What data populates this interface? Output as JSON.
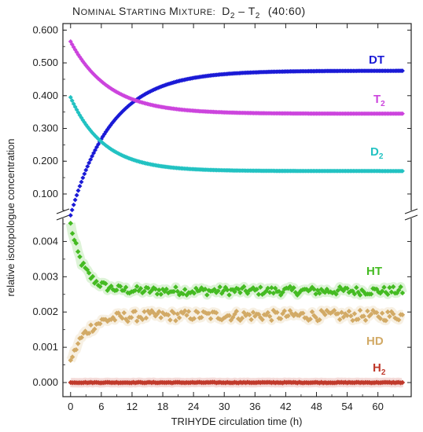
{
  "title": "NOMINAL STARTING MIXTURE: D2 – T2 (40:60)",
  "title_parts": {
    "lead": "N",
    "lead_small": "OMINAL ",
    "s": "S",
    "s_small": "TARTING ",
    "m": "M",
    "m_small": "IXTURE:",
    "formula_a": "D",
    "formula_sub_a": "2",
    "dash": " – ",
    "formula_b": "T",
    "formula_sub_b": "2",
    "ratio": "(40:60)"
  },
  "chart_data": [
    {
      "type": "scatter",
      "panel": "upper",
      "xlabel": "TRIHYDE circulation time  (h)",
      "ylabel": "relative isotopologue concentration",
      "xlim": [
        -1.5,
        66.5
      ],
      "ylim": [
        0.04,
        0.62
      ],
      "yticks": [
        "0.100",
        "0.200",
        "0.300",
        "0.400",
        "0.500",
        "0.600"
      ],
      "series": [
        {
          "name": "DT",
          "label_base": "DT",
          "label_sub": "",
          "color": "#1a1ad6",
          "start": 0.035,
          "end": 0.476,
          "tau": 8.0
        },
        {
          "name": "T2",
          "label_base": "T",
          "label_sub": "2",
          "color": "#cc44dd",
          "start": 0.565,
          "end": 0.345,
          "tau": 7.5
        },
        {
          "name": "D2",
          "label_base": "D",
          "label_sub": "2",
          "color": "#22c2c2",
          "start": 0.395,
          "end": 0.17,
          "tau": 6.5
        }
      ]
    },
    {
      "type": "scatter",
      "panel": "lower",
      "xlim": [
        -1.5,
        66.5
      ],
      "ylim": [
        -0.0004,
        0.0047
      ],
      "xticks": [
        "0",
        "6",
        "12",
        "18",
        "24",
        "30",
        "36",
        "42",
        "48",
        "54",
        "60"
      ],
      "yticks": [
        "0.000",
        "0.001",
        "0.002",
        "0.003",
        "0.004"
      ],
      "series": [
        {
          "name": "HT",
          "label_base": "HT",
          "label_sub": "",
          "color": "#44bb22",
          "start": 0.0045,
          "end": 0.0026,
          "tau": 2.5,
          "noise": 0.00012
        },
        {
          "name": "HD",
          "label_base": "HD",
          "label_sub": "",
          "color": "#d2aa66",
          "start": 0.0006,
          "end": 0.0019,
          "tau": 3.0,
          "noise": 0.00015
        },
        {
          "name": "H2",
          "label_base": "H",
          "label_sub": "2",
          "color": "#c0392b",
          "start": 0.0,
          "end": 0.0,
          "tau": 1.0,
          "noise": 1e-05
        }
      ]
    }
  ]
}
